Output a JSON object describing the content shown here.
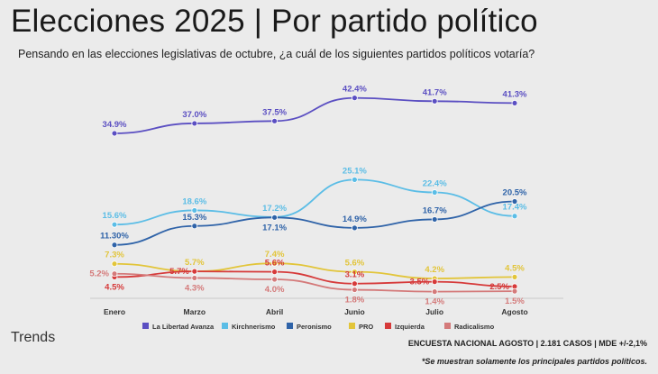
{
  "header": {
    "title": "Elecciones 2025 | Por partido político",
    "subtitle": "Pensando en las elecciones legislativas de octubre, ¿a cuál de los siguientes partidos políticos votaría?"
  },
  "footer": {
    "brand": "Trends",
    "survey": "ENCUESTA NACIONAL AGOSTO | 2.181 CASOS | MDE +/-2,1%",
    "footnote": "*Se muestran solamente los principales partidos políticos."
  },
  "chart_data": {
    "type": "line",
    "categories": [
      "Enero",
      "Marzo",
      "Abril",
      "Junio",
      "Julio",
      "Agosto"
    ],
    "ylim": [
      0,
      45
    ],
    "grid": false,
    "legend_position": "bottom",
    "series": [
      {
        "name": "La Libertad Avanza",
        "color": "#5b4fc2",
        "values": [
          34.9,
          37.0,
          37.5,
          42.4,
          41.7,
          41.3
        ],
        "labels": [
          "34.9%",
          "37.0%",
          "37.5%",
          "42.4%",
          "41.7%",
          "41.3%"
        ],
        "label_pos": [
          "above",
          "above",
          "above",
          "above",
          "above",
          "above"
        ]
      },
      {
        "name": "Kirchnerismo",
        "color": "#5bbde6",
        "values": [
          15.6,
          18.6,
          17.2,
          25.1,
          22.4,
          17.4
        ],
        "labels": [
          "15.6%",
          "18.6%",
          "17.2%",
          "25.1%",
          "22.4%",
          "17.4%"
        ],
        "label_pos": [
          "above",
          "above",
          "above",
          "above",
          "above",
          "above"
        ]
      },
      {
        "name": "Peronismo",
        "color": "#2f63a8",
        "values": [
          11.3,
          15.3,
          17.1,
          14.9,
          16.7,
          20.5
        ],
        "labels": [
          "11.30%",
          "15.3%",
          "17.1%",
          "14.9%",
          "16.7%",
          "20.5%"
        ],
        "label_pos": [
          "above",
          "above",
          "below",
          "above",
          "above",
          "above"
        ]
      },
      {
        "name": "PRO",
        "color": "#e2c53a",
        "values": [
          7.3,
          5.7,
          7.4,
          5.6,
          4.2,
          4.5
        ],
        "labels": [
          "7.3%",
          "5.7%",
          "7.4%",
          "5.6%",
          "4.2%",
          "4.5%"
        ],
        "label_pos": [
          "above",
          "above",
          "above",
          "above",
          "above",
          "above"
        ]
      },
      {
        "name": "Izquierda",
        "color": "#d63a3a",
        "values": [
          4.5,
          5.7,
          5.6,
          3.1,
          3.5,
          2.5
        ],
        "labels": [
          "4.5%",
          "5.7%",
          "5.6%",
          "3.1%",
          "3.5%",
          "2.5%"
        ],
        "label_pos": [
          "below",
          "left",
          "above",
          "above",
          "left",
          "left"
        ]
      },
      {
        "name": "Radicalismo",
        "color": "#d47a7a",
        "values": [
          5.2,
          4.3,
          4.0,
          1.8,
          1.4,
          1.5
        ],
        "labels": [
          "5.2%",
          "4.3%",
          "4.0%",
          "1.8%",
          "1.4%",
          "1.5%"
        ],
        "label_pos": [
          "left",
          "below",
          "below",
          "below",
          "below",
          "below"
        ]
      }
    ]
  }
}
